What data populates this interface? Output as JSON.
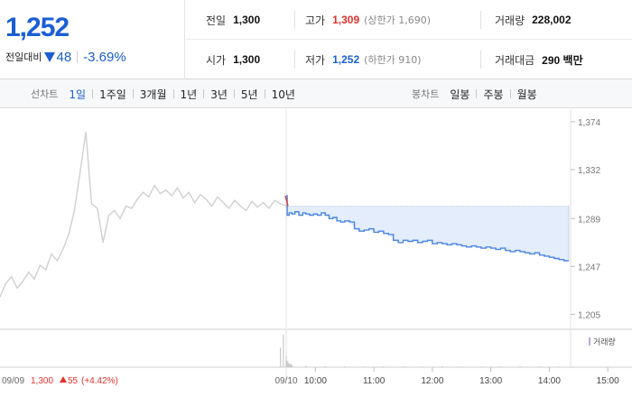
{
  "quote": {
    "price": "1,252",
    "change_label": "전일대비",
    "change_amount": "48",
    "change_percent": "-3.69%",
    "prev_close": {
      "label": "전일",
      "value": "1,300"
    },
    "open": {
      "label": "시가",
      "value": "1,300"
    },
    "high": {
      "label": "고가",
      "value": "1,309",
      "limit": "(상한가 1,690)"
    },
    "low": {
      "label": "저가",
      "value": "1,252",
      "limit": "(하한가 910)"
    },
    "volume": {
      "label": "거래량",
      "value": "228,002"
    },
    "turnover": {
      "label": "거래대금",
      "value": "290 백만"
    }
  },
  "tabs": {
    "line_label": "선차트",
    "line_tabs": [
      "1일",
      "1주일",
      "3개월",
      "1년",
      "3년",
      "5년",
      "10년"
    ],
    "candle_label": "봉차트",
    "candle_tabs": [
      "일봉",
      "주봉",
      "월봉"
    ]
  },
  "colors": {
    "up": "#e0322b",
    "down": "#1a5fd4",
    "today_line": "#4a86e0",
    "prev_line": "#d0d0d0",
    "fill": "#e3edfb"
  },
  "chart_data": {
    "type": "line",
    "ylim": [
      1195,
      1385
    ],
    "y_ticks": [
      "1,374",
      "1,332",
      "1,289",
      "1,247",
      "1,205"
    ],
    "y_tick_values": [
      1374,
      1332,
      1289,
      1247,
      1205
    ],
    "x_ticks": [
      "10:00",
      "11:00",
      "12:00",
      "13:00",
      "14:00",
      "15:00"
    ],
    "prev_day_label": "09/09",
    "today_label": "09/10",
    "reference_price": 1300,
    "prev_day_summary": {
      "price": "1,300",
      "change": "55",
      "percent": "(+4.42%)"
    },
    "volume_legend": "거래량",
    "series": [
      {
        "x": [
          0,
          2,
          4,
          6,
          8,
          10,
          12,
          14,
          16,
          18,
          20,
          22,
          24,
          26,
          28,
          30,
          32,
          34,
          36,
          38,
          40,
          42,
          44,
          46,
          48,
          50,
          52,
          54,
          56,
          58,
          60,
          62,
          64,
          66,
          68,
          70,
          72,
          74,
          76,
          78,
          80,
          82,
          84,
          86,
          88,
          90,
          92,
          94,
          96,
          98,
          100
        ],
        "values": [
          1220,
          1232,
          1238,
          1228,
          1234,
          1242,
          1236,
          1248,
          1244,
          1258,
          1252,
          1262,
          1275,
          1296,
          1330,
          1365,
          1302,
          1298,
          1268,
          1292,
          1296,
          1289,
          1300,
          1298,
          1306,
          1312,
          1308,
          1318,
          1311,
          1314,
          1309,
          1316,
          1307,
          1312,
          1303,
          1310,
          1306,
          1300,
          1308,
          1303,
          1298,
          1305,
          1300,
          1296,
          1304,
          1299,
          1303,
          1298,
          1305,
          1302,
          1300
        ]
      },
      {
        "x": [
          100,
          101,
          103,
          106,
          109,
          113,
          117,
          120,
          124,
          128,
          132,
          136,
          140,
          144,
          148,
          152,
          156,
          160,
          165,
          170,
          175,
          180,
          185,
          190,
          195,
          200,
          205,
          210,
          215,
          220,
          225,
          230,
          235,
          240,
          245,
          250,
          255,
          260,
          265,
          270,
          275,
          280,
          285,
          290,
          295,
          300,
          305,
          310,
          315,
          320,
          325,
          330,
          335,
          340,
          345,
          350,
          355,
          360,
          365,
          370,
          375,
          380,
          385,
          390
        ],
        "values": [
          1309,
          1292,
          1294,
          1293,
          1295,
          1292,
          1294,
          1293,
          1292,
          1293,
          1292,
          1294,
          1292,
          1289,
          1290,
          1287,
          1286,
          1287,
          1286,
          1280,
          1278,
          1279,
          1280,
          1277,
          1278,
          1276,
          1275,
          1270,
          1268,
          1270,
          1269,
          1270,
          1268,
          1269,
          1270,
          1267,
          1268,
          1267,
          1266,
          1267,
          1266,
          1265,
          1264,
          1265,
          1264,
          1263,
          1264,
          1263,
          1262,
          1263,
          1261,
          1260,
          1261,
          1260,
          1259,
          1258,
          1259,
          1257,
          1256,
          1255,
          1254,
          1253,
          1252,
          1252
        ]
      }
    ],
    "volume": {
      "x": [
        98,
        99,
        100,
        101,
        102,
        103,
        104,
        105,
        106,
        120,
        140,
        160,
        180,
        200,
        220,
        240,
        260,
        280,
        300,
        320,
        340,
        360,
        380
      ],
      "values": [
        60,
        100,
        35,
        20,
        15,
        12,
        8,
        10,
        6,
        4,
        3,
        3,
        2,
        3,
        2,
        2,
        3,
        2,
        2,
        2,
        3,
        2,
        2
      ]
    }
  }
}
